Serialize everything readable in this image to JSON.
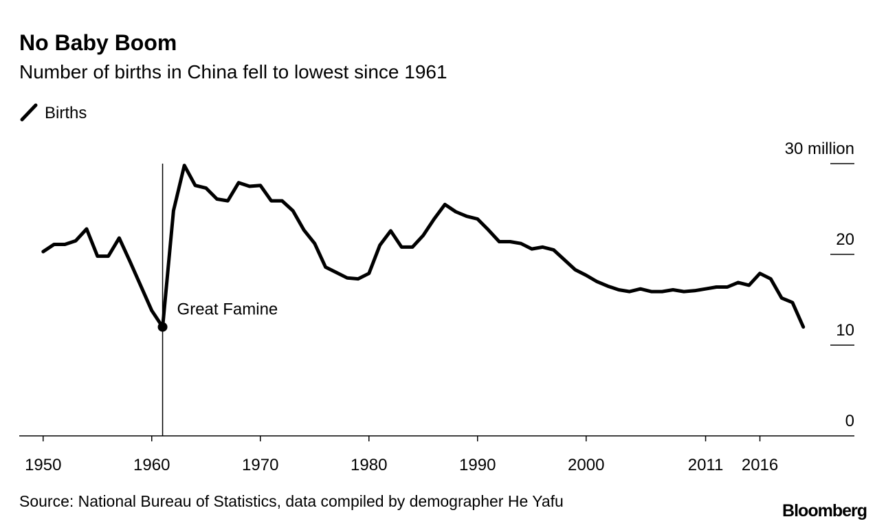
{
  "chart_data": {
    "type": "line",
    "title": "No Baby Boom",
    "subtitle": "Number of births in China fell to lowest since 1961",
    "source": "Source: National Bureau of Statistics, data compiled by demographer He Yafu",
    "brand": "Bloomberg",
    "x": [
      1950,
      1951,
      1952,
      1953,
      1954,
      1955,
      1956,
      1957,
      1958,
      1959,
      1960,
      1961,
      1962,
      1963,
      1964,
      1965,
      1966,
      1967,
      1968,
      1969,
      1970,
      1971,
      1972,
      1973,
      1974,
      1975,
      1976,
      1977,
      1978,
      1979,
      1980,
      1981,
      1982,
      1983,
      1984,
      1985,
      1986,
      1987,
      1988,
      1989,
      1990,
      1991,
      1992,
      1993,
      1994,
      1995,
      1996,
      1997,
      1998,
      1999,
      2000,
      2001,
      2002,
      2003,
      2004,
      2005,
      2006,
      2007,
      2008,
      2009,
      2010,
      2011,
      2012,
      2013,
      2014,
      2015,
      2016,
      2017,
      2018,
      2019,
      2020
    ],
    "series": [
      {
        "name": "Births",
        "color": "#000000",
        "values": [
          20.3,
          21.1,
          21.1,
          21.5,
          22.8,
          19.8,
          19.8,
          21.8,
          19.2,
          16.5,
          13.8,
          12.0,
          24.8,
          29.8,
          27.6,
          27.3,
          26.1,
          25.9,
          27.9,
          27.5,
          27.6,
          25.9,
          25.9,
          24.8,
          22.7,
          21.2,
          18.6,
          18.0,
          17.4,
          17.3,
          17.9,
          21.0,
          22.6,
          20.8,
          20.8,
          22.1,
          23.9,
          25.5,
          24.7,
          24.2,
          23.9,
          22.7,
          21.4,
          21.4,
          21.2,
          20.6,
          20.8,
          20.5,
          19.4,
          18.3,
          17.7,
          17.0,
          16.5,
          16.1,
          15.9,
          16.2,
          15.9,
          15.9,
          16.1,
          15.9,
          16.0,
          16.2,
          16.4,
          16.4,
          16.9,
          16.6,
          17.9,
          17.3,
          15.2,
          14.7,
          12.0
        ]
      }
    ],
    "xlim": [
      1947.8,
      2024.7
    ],
    "xticks": [
      1950,
      1960,
      1970,
      1980,
      1990,
      2000,
      2011,
      2016
    ],
    "ylim": [
      0,
      30
    ],
    "yticks": [
      0,
      10,
      20,
      {
        "value": 30,
        "label": "30 million"
      }
    ],
    "annotations": [
      {
        "text": "Great Famine",
        "x": 1961
      }
    ]
  }
}
